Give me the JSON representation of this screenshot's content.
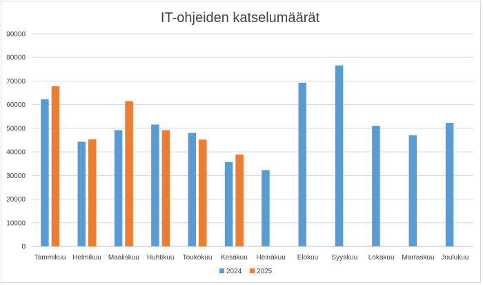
{
  "chart_data": {
    "type": "bar",
    "title": "IT-ohjeiden katselumäärät",
    "xlabel": "",
    "ylabel": "",
    "ylim": [
      0,
      90000
    ],
    "yticks": [
      0,
      10000,
      20000,
      30000,
      40000,
      50000,
      60000,
      70000,
      80000,
      90000
    ],
    "grid": true,
    "legend_position": "bottom",
    "categories": [
      "Tammikuu",
      "Helmikuu",
      "Maaliskuu",
      "Huhtikuu",
      "Toukokuu",
      "Kesäkuu",
      "Heinäkuu",
      "Elokuu",
      "Syyskuu",
      "Lokakuu",
      "Marraskuu",
      "Joulukuu"
    ],
    "series": [
      {
        "name": "2024",
        "color": "#5b9bd5",
        "values": [
          62300,
          44300,
          49200,
          51600,
          48000,
          35700,
          32300,
          69300,
          76600,
          51000,
          47000,
          52300
        ]
      },
      {
        "name": "2025",
        "color": "#ed7d31",
        "values": [
          67800,
          45300,
          61500,
          49200,
          45200,
          38900,
          null,
          null,
          null,
          null,
          null,
          null
        ]
      }
    ]
  }
}
